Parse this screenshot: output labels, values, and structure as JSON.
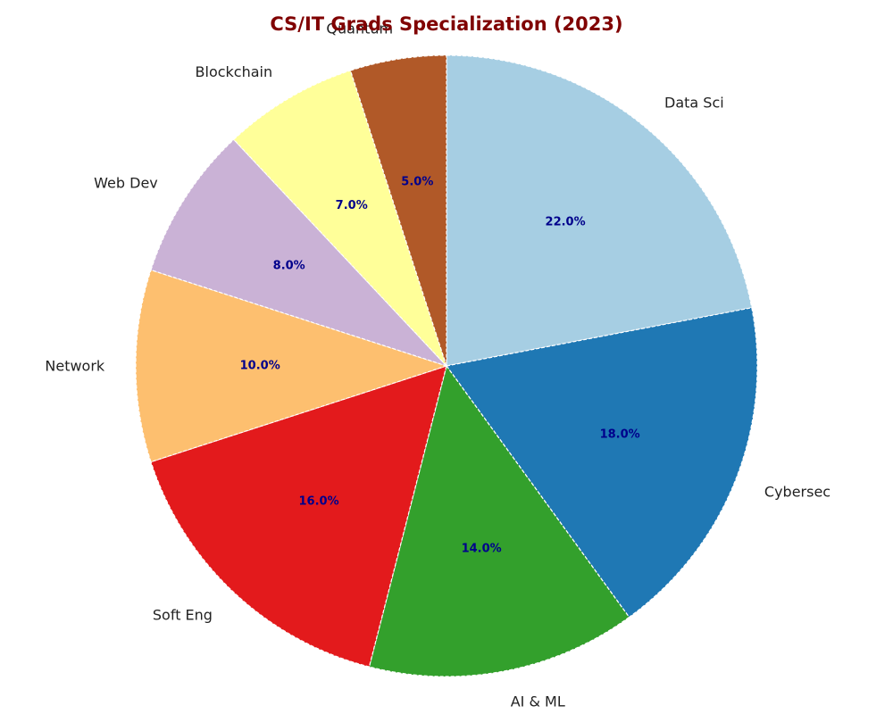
{
  "chart_data": {
    "type": "pie",
    "title": "CS/IT Grads Specialization (2023)",
    "title_color": "#800000",
    "percent_label_color": "#00008b",
    "start_angle_deg": 90,
    "direction": "clockwise",
    "slice_edge": "white dashed",
    "slices": [
      {
        "label": "Data Sci",
        "value": 22.0,
        "pct_label": "22.0%",
        "color": "#a6cee3"
      },
      {
        "label": "Cybersec",
        "value": 18.0,
        "pct_label": "18.0%",
        "color": "#1f78b4"
      },
      {
        "label": "AI & ML",
        "value": 14.0,
        "pct_label": "14.0%",
        "color": "#33a02c"
      },
      {
        "label": "Soft Eng",
        "value": 16.0,
        "pct_label": "16.0%",
        "color": "#e31a1c"
      },
      {
        "label": "Network",
        "value": 10.0,
        "pct_label": "10.0%",
        "color": "#fdbf6f"
      },
      {
        "label": "Web Dev",
        "value": 8.0,
        "pct_label": "8.0%",
        "color": "#cab2d6"
      },
      {
        "label": "Blockchain",
        "value": 7.0,
        "pct_label": "7.0%",
        "color": "#ffff99"
      },
      {
        "label": "Quantum",
        "value": 5.0,
        "pct_label": "5.0%",
        "color": "#b15928"
      }
    ]
  }
}
